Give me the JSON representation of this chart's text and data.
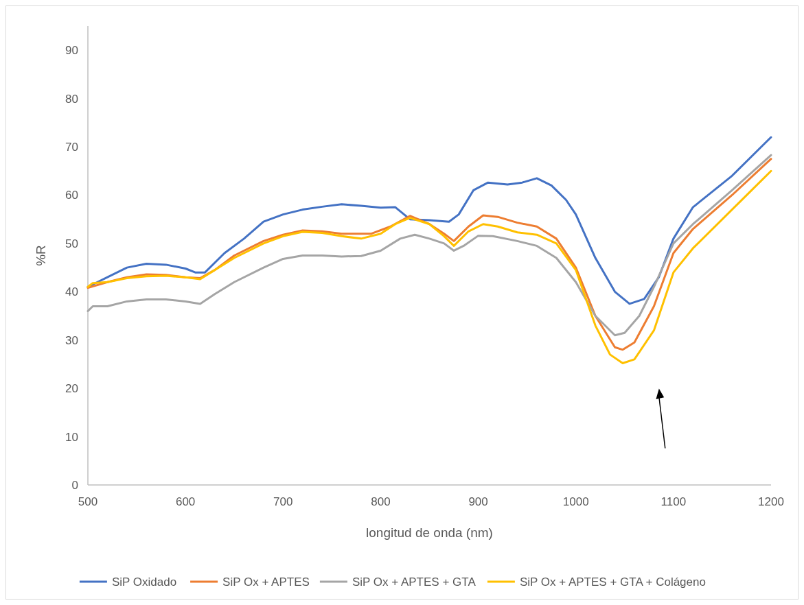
{
  "chart_data": {
    "type": "line",
    "xlabel": "longitud de onda (nm)",
    "ylabel": "%R",
    "xlim": [
      500,
      1200
    ],
    "ylim": [
      0,
      95
    ],
    "xticks": [
      500,
      600,
      700,
      800,
      900,
      1000,
      1100,
      1200
    ],
    "yticks": [
      0,
      10,
      20,
      30,
      40,
      50,
      60,
      70,
      80,
      90
    ],
    "grid": false,
    "legend": "bottom",
    "line_style": "solid",
    "series": [
      {
        "name": "SiP Oxidado",
        "color": "#4472c4",
        "x": [
          500,
          520,
          540,
          560,
          580,
          600,
          610,
          620,
          640,
          660,
          680,
          700,
          720,
          740,
          760,
          780,
          800,
          815,
          830,
          850,
          870,
          880,
          895,
          910,
          930,
          945,
          960,
          975,
          990,
          1000,
          1020,
          1040,
          1055,
          1070,
          1085,
          1100,
          1120,
          1160,
          1200
        ],
        "values": [
          41,
          43,
          45,
          45.8,
          45.6,
          44.8,
          44,
          44,
          48,
          51,
          54.5,
          56,
          57,
          57.6,
          58.1,
          57.8,
          57.4,
          57.5,
          55,
          54.8,
          54.5,
          56,
          61,
          62.6,
          62.2,
          62.6,
          63.5,
          62,
          59,
          56,
          47,
          40,
          37.5,
          38.5,
          43,
          51,
          57.5,
          64,
          72
        ]
      },
      {
        "name": "SiP Ox + APTES",
        "color": "#ed7d31",
        "x": [
          500,
          520,
          540,
          560,
          580,
          600,
          615,
          630,
          650,
          680,
          700,
          720,
          740,
          760,
          790,
          810,
          830,
          850,
          865,
          875,
          890,
          905,
          920,
          940,
          960,
          980,
          1000,
          1020,
          1040,
          1048,
          1060,
          1080,
          1100,
          1120,
          1160,
          1200
        ],
        "values": [
          40.8,
          42,
          43,
          43.6,
          43.5,
          43,
          42.8,
          44.5,
          47.5,
          50.5,
          51.8,
          52.7,
          52.5,
          52,
          52,
          53.5,
          55.7,
          54,
          52,
          50.5,
          53.5,
          55.8,
          55.5,
          54.3,
          53.5,
          51,
          45,
          35,
          28.5,
          28,
          29.5,
          37,
          48,
          53,
          60,
          67.5
        ]
      },
      {
        "name": "SiP Ox + APTES + GTA",
        "color": "#a5a5a5",
        "x": [
          500,
          505,
          520,
          540,
          560,
          580,
          600,
          615,
          630,
          650,
          680,
          700,
          720,
          740,
          760,
          780,
          800,
          820,
          835,
          850,
          865,
          875,
          885,
          900,
          915,
          940,
          960,
          980,
          1000,
          1020,
          1040,
          1050,
          1065,
          1080,
          1100,
          1120,
          1160,
          1200
        ],
        "values": [
          36,
          37,
          37,
          38,
          38.4,
          38.4,
          38,
          37.5,
          39.5,
          42,
          45,
          46.8,
          47.5,
          47.5,
          47.3,
          47.4,
          48.5,
          51,
          51.8,
          51,
          50,
          48.5,
          49.5,
          51.6,
          51.5,
          50.5,
          49.5,
          47,
          42,
          35,
          31,
          31.5,
          35,
          41,
          50,
          54,
          61,
          68.3
        ]
      },
      {
        "name": "SiP Ox + APTES + GTA + Colágeno",
        "color": "#ffc000",
        "x": [
          500,
          505,
          520,
          540,
          560,
          580,
          600,
          615,
          630,
          650,
          680,
          700,
          720,
          740,
          760,
          780,
          800,
          815,
          830,
          850,
          865,
          875,
          890,
          905,
          920,
          940,
          960,
          980,
          1000,
          1020,
          1035,
          1048,
          1060,
          1080,
          1100,
          1120,
          1160,
          1200
        ],
        "values": [
          41,
          41.8,
          42,
          42.8,
          43.2,
          43.3,
          43,
          42.6,
          44.5,
          47,
          50,
          51.5,
          52.4,
          52.2,
          51.5,
          51,
          52,
          54,
          55.3,
          54,
          51.5,
          49.5,
          52.5,
          54,
          53.5,
          52.3,
          51.8,
          50,
          44.5,
          33,
          27,
          25.2,
          26,
          32,
          44,
          49,
          57,
          65
        ]
      }
    ]
  }
}
